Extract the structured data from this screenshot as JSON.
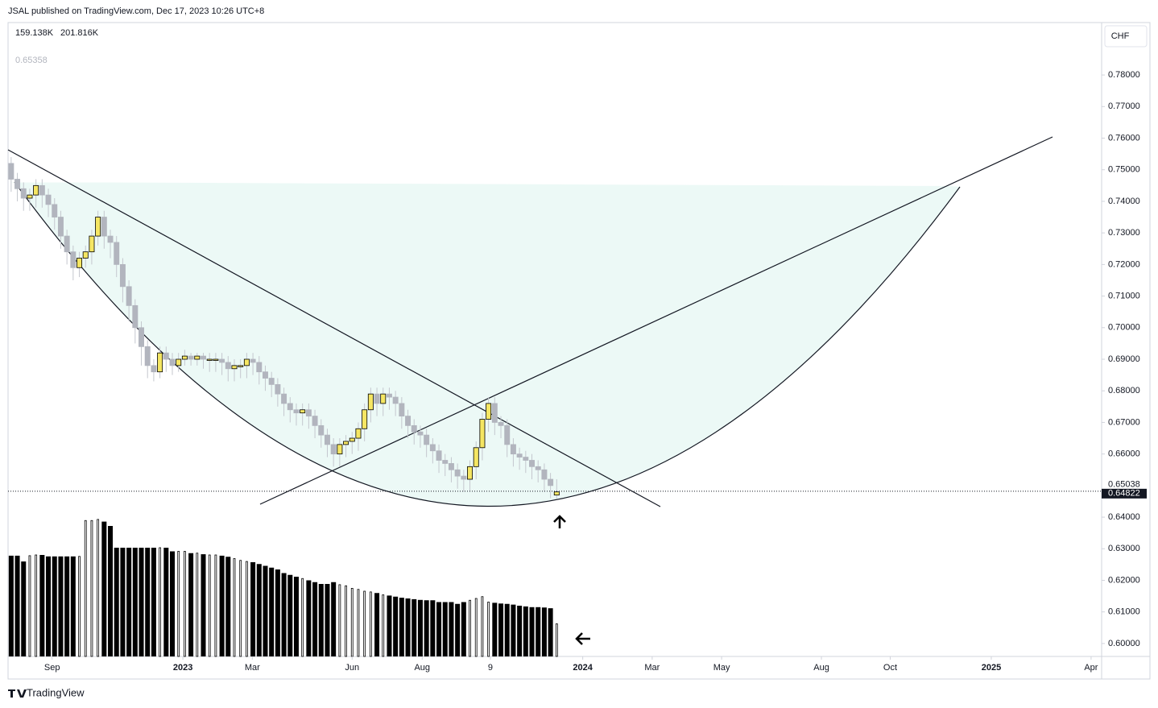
{
  "header": {
    "publisher": "JSAL published on TradingView.com, Dec 17, 2023 10:26 UTC+8",
    "legend_values": [
      "159.138K",
      "201.816K"
    ],
    "indicator": "0.65358",
    "currency": "CHF",
    "brand": "TradingView"
  },
  "chart_data": {
    "type": "candlestick",
    "candles": [
      [
        0.752,
        0.754,
        0.743,
        0.747
      ],
      [
        0.747,
        0.749,
        0.74,
        0.744
      ],
      [
        0.744,
        0.746,
        0.737,
        0.741
      ],
      [
        0.741,
        0.744,
        0.737,
        0.742
      ],
      [
        0.742,
        0.747,
        0.738,
        0.745
      ],
      [
        0.745,
        0.747,
        0.738,
        0.742
      ],
      [
        0.742,
        0.744,
        0.735,
        0.739
      ],
      [
        0.739,
        0.741,
        0.731,
        0.735
      ],
      [
        0.735,
        0.737,
        0.725,
        0.729
      ],
      [
        0.729,
        0.731,
        0.72,
        0.724
      ],
      [
        0.724,
        0.726,
        0.715,
        0.719
      ],
      [
        0.719,
        0.724,
        0.716,
        0.722
      ],
      [
        0.722,
        0.726,
        0.719,
        0.724
      ],
      [
        0.724,
        0.731,
        0.72,
        0.729
      ],
      [
        0.729,
        0.737,
        0.726,
        0.735
      ],
      [
        0.735,
        0.737,
        0.725,
        0.729
      ],
      [
        0.729,
        0.731,
        0.722,
        0.727
      ],
      [
        0.727,
        0.729,
        0.716,
        0.72
      ],
      [
        0.72,
        0.722,
        0.708,
        0.713
      ],
      [
        0.713,
        0.715,
        0.702,
        0.707
      ],
      [
        0.707,
        0.709,
        0.695,
        0.7
      ],
      [
        0.7,
        0.702,
        0.688,
        0.694
      ],
      [
        0.694,
        0.696,
        0.684,
        0.688
      ],
      [
        0.688,
        0.69,
        0.683,
        0.686
      ],
      [
        0.686,
        0.694,
        0.684,
        0.692
      ],
      [
        0.692,
        0.694,
        0.686,
        0.69
      ],
      [
        0.69,
        0.692,
        0.685,
        0.688
      ],
      [
        0.688,
        0.692,
        0.686,
        0.69
      ],
      [
        0.69,
        0.693,
        0.688,
        0.691
      ],
      [
        0.691,
        0.692,
        0.688,
        0.69
      ],
      [
        0.69,
        0.692,
        0.688,
        0.691
      ],
      [
        0.691,
        0.692,
        0.687,
        0.69
      ],
      [
        0.69,
        0.692,
        0.686,
        0.69
      ],
      [
        0.69,
        0.692,
        0.686,
        0.69
      ],
      [
        0.69,
        0.692,
        0.685,
        0.689
      ],
      [
        0.689,
        0.691,
        0.683,
        0.687
      ],
      [
        0.687,
        0.69,
        0.683,
        0.688
      ],
      [
        0.688,
        0.69,
        0.684,
        0.688
      ],
      [
        0.688,
        0.692,
        0.684,
        0.69
      ],
      [
        0.69,
        0.692,
        0.685,
        0.689
      ],
      [
        0.689,
        0.691,
        0.682,
        0.686
      ],
      [
        0.686,
        0.688,
        0.68,
        0.684
      ],
      [
        0.684,
        0.686,
        0.678,
        0.682
      ],
      [
        0.682,
        0.684,
        0.675,
        0.679
      ],
      [
        0.679,
        0.681,
        0.672,
        0.676
      ],
      [
        0.676,
        0.678,
        0.67,
        0.674
      ],
      [
        0.674,
        0.676,
        0.669,
        0.673
      ],
      [
        0.673,
        0.676,
        0.669,
        0.674
      ],
      [
        0.674,
        0.676,
        0.668,
        0.672
      ],
      [
        0.672,
        0.674,
        0.665,
        0.669
      ],
      [
        0.669,
        0.671,
        0.662,
        0.666
      ],
      [
        0.666,
        0.668,
        0.659,
        0.663
      ],
      [
        0.663,
        0.665,
        0.656,
        0.66
      ],
      [
        0.66,
        0.665,
        0.656,
        0.663
      ],
      [
        0.663,
        0.666,
        0.659,
        0.664
      ],
      [
        0.664,
        0.667,
        0.66,
        0.665
      ],
      [
        0.665,
        0.67,
        0.661,
        0.668
      ],
      [
        0.668,
        0.676,
        0.664,
        0.674
      ],
      [
        0.674,
        0.681,
        0.67,
        0.679
      ],
      [
        0.679,
        0.681,
        0.672,
        0.676
      ],
      [
        0.676,
        0.681,
        0.672,
        0.679
      ],
      [
        0.679,
        0.681,
        0.674,
        0.678
      ],
      [
        0.678,
        0.68,
        0.672,
        0.676
      ],
      [
        0.676,
        0.678,
        0.668,
        0.672
      ],
      [
        0.672,
        0.674,
        0.665,
        0.669
      ],
      [
        0.669,
        0.671,
        0.663,
        0.667
      ],
      [
        0.667,
        0.669,
        0.662,
        0.666
      ],
      [
        0.666,
        0.668,
        0.659,
        0.663
      ],
      [
        0.663,
        0.665,
        0.657,
        0.661
      ],
      [
        0.661,
        0.663,
        0.654,
        0.658
      ],
      [
        0.658,
        0.66,
        0.653,
        0.657
      ],
      [
        0.657,
        0.659,
        0.651,
        0.655
      ],
      [
        0.655,
        0.657,
        0.649,
        0.653
      ],
      [
        0.653,
        0.655,
        0.648,
        0.652
      ],
      [
        0.652,
        0.658,
        0.648,
        0.656
      ],
      [
        0.656,
        0.664,
        0.652,
        0.662
      ],
      [
        0.662,
        0.673,
        0.658,
        0.671
      ],
      [
        0.671,
        0.678,
        0.667,
        0.676
      ],
      [
        0.676,
        0.678,
        0.666,
        0.67
      ],
      [
        0.67,
        0.672,
        0.665,
        0.669
      ],
      [
        0.669,
        0.671,
        0.659,
        0.663
      ],
      [
        0.663,
        0.665,
        0.656,
        0.66
      ],
      [
        0.66,
        0.662,
        0.655,
        0.659
      ],
      [
        0.659,
        0.661,
        0.654,
        0.658
      ],
      [
        0.658,
        0.66,
        0.652,
        0.656
      ],
      [
        0.656,
        0.658,
        0.651,
        0.655
      ],
      [
        0.655,
        0.657,
        0.648,
        0.652
      ],
      [
        0.652,
        0.654,
        0.646,
        0.65
      ],
      [
        0.647,
        0.652,
        0.646,
        0.648
      ]
    ],
    "volume": [
      278,
      278,
      262,
      278,
      280,
      280,
      276,
      276,
      276,
      276,
      276,
      276,
      375,
      375,
      378,
      372,
      360,
      300,
      300,
      300,
      300,
      300,
      300,
      300,
      300,
      300,
      290,
      290,
      290,
      285,
      285,
      282,
      280,
      280,
      278,
      275,
      270,
      265,
      262,
      260,
      255,
      250,
      245,
      240,
      230,
      225,
      220,
      215,
      210,
      205,
      200,
      200,
      205,
      198,
      195,
      188,
      185,
      180,
      178,
      175,
      170,
      168,
      165,
      162,
      160,
      158,
      156,
      155,
      155,
      150,
      150,
      150,
      145,
      150,
      155,
      160,
      165,
      150,
      148,
      146,
      145,
      143,
      140,
      138,
      136,
      136,
      135,
      133,
      90
    ],
    "up_color": "#f5e663",
    "down_color": "#b2b5be",
    "xlim": [
      -0.5,
      175.9
    ],
    "xticks": [
      {
        "value": 6.6,
        "label": "Sep"
      },
      {
        "value": 27.7,
        "label": "2023"
      },
      {
        "value": 38.9,
        "label": "Mar"
      },
      {
        "value": 55.0,
        "label": "Jun"
      },
      {
        "value": 66.3,
        "label": "Aug"
      },
      {
        "value": 77.3,
        "label": "9"
      },
      {
        "value": 92.2,
        "label": "2024"
      },
      {
        "value": 103.4,
        "label": "Mar"
      },
      {
        "value": 114.6,
        "label": "May"
      },
      {
        "value": 130.7,
        "label": "Aug"
      },
      {
        "value": 141.8,
        "label": "Oct"
      },
      {
        "value": 158.1,
        "label": "2025"
      },
      {
        "value": 174.2,
        "label": "Apr"
      }
    ],
    "ylim": [
      0.5959,
      0.7966
    ],
    "yticks": [
      {
        "value": 0.78,
        "label": "0.78000"
      },
      {
        "value": 0.77,
        "label": "0.77000"
      },
      {
        "value": 0.76,
        "label": "0.76000"
      },
      {
        "value": 0.75,
        "label": "0.75000"
      },
      {
        "value": 0.74,
        "label": "0.74000"
      },
      {
        "value": 0.73,
        "label": "0.73000"
      },
      {
        "value": 0.72,
        "label": "0.72000"
      },
      {
        "value": 0.71,
        "label": "0.71000"
      },
      {
        "value": 0.7,
        "label": "0.70000"
      },
      {
        "value": 0.69,
        "label": "0.69000"
      },
      {
        "value": 0.68,
        "label": "0.68000"
      },
      {
        "value": 0.67,
        "label": "0.67000"
      },
      {
        "value": 0.66,
        "label": "0.66000"
      },
      {
        "value": 0.64,
        "label": "0.64000"
      },
      {
        "value": 0.63,
        "label": "0.63000"
      },
      {
        "value": 0.62,
        "label": "0.62000"
      },
      {
        "value": 0.61,
        "label": "0.61000"
      },
      {
        "value": 0.6,
        "label": "0.60000"
      }
    ],
    "price_label": 0.65038,
    "last_price": 0.64822
  }
}
